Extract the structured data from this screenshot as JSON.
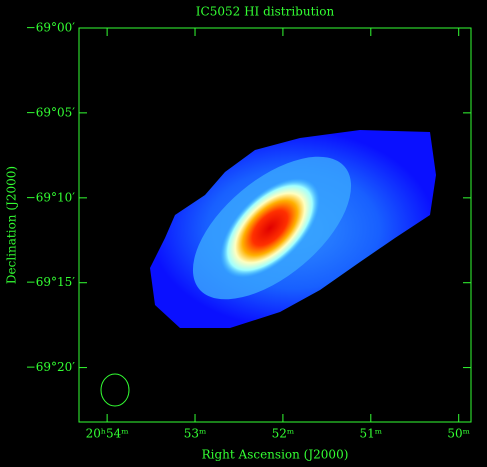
{
  "chart_data": {
    "type": "image",
    "title": "IC5052   HI distribution",
    "x_label": "Right Ascension (J2000)",
    "y_label": "Declination (J2000)",
    "axis_color": "#33ff33",
    "xlim": [
      54.32,
      49.86
    ],
    "xticks": [
      {
        "value": 54,
        "label": "20ʰ54ᵐ"
      },
      {
        "value": 53,
        "label": "53ᵐ"
      },
      {
        "value": 52,
        "label": "52ᵐ"
      },
      {
        "value": 51,
        "label": "51ᵐ"
      },
      {
        "value": 50,
        "label": "50ᵐ"
      }
    ],
    "ylim": [
      -69.0,
      -69.3867
    ],
    "yticks": [
      {
        "value": -69.0,
        "label": "−69°00′"
      },
      {
        "value": -69.0833,
        "label": "−69°05′"
      },
      {
        "value": -69.1667,
        "label": "−69°10′"
      },
      {
        "value": -69.25,
        "label": "−69°15′"
      },
      {
        "value": -69.3333,
        "label": "−69°20′"
      }
    ]
  }
}
